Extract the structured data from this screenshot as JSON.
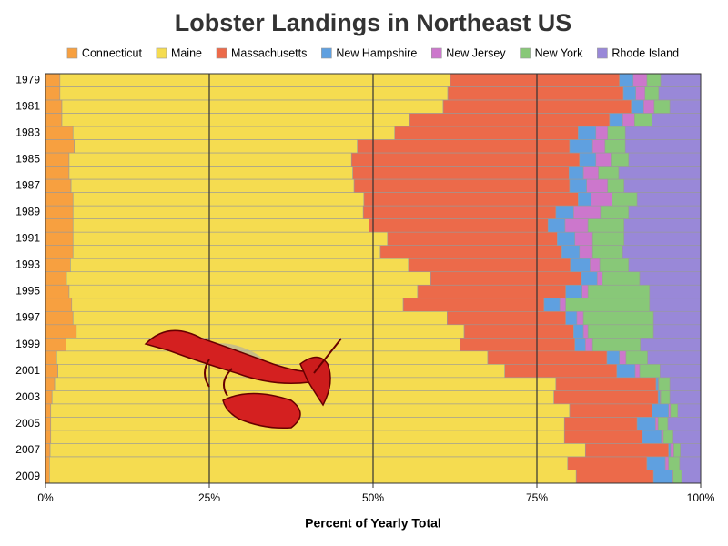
{
  "chart_data": {
    "type": "stacked-bar-horizontal",
    "title": "Lobster Landings in Northeast US",
    "x_label": "Percent of Yearly Total",
    "categories": [
      "1979",
      null,
      "1981",
      null,
      "1983",
      null,
      "1985",
      null,
      "1987",
      null,
      "1989",
      null,
      "1991",
      null,
      "1993",
      null,
      "1995",
      null,
      "1997",
      null,
      "1999",
      null,
      "2001",
      null,
      "2003",
      null,
      "2005",
      null,
      "2007",
      null,
      "2009"
    ],
    "series": [
      {
        "name": "Connecticut",
        "color": "#f7a040",
        "values": [
          2.2,
          2.2,
          2.5,
          2.5,
          4.2,
          4.4,
          3.6,
          3.6,
          3.9,
          4.2,
          4.2,
          4.2,
          4.2,
          4.2,
          3.8,
          3.2,
          3.6,
          4.0,
          4.2,
          4.7,
          3.1,
          1.7,
          1.9,
          1.4,
          1.0,
          0.8,
          0.8,
          0.8,
          0.7,
          0.6,
          0.6
        ]
      },
      {
        "name": "Maine",
        "color": "#f5dc50",
        "values": [
          59.6,
          59.2,
          58.2,
          53.1,
          49.1,
          43.2,
          43.1,
          43.3,
          43.2,
          44.4,
          44.3,
          45.2,
          48.0,
          46.9,
          51.6,
          55.6,
          53.2,
          50.6,
          57.1,
          59.2,
          60.2,
          65.8,
          68.2,
          76.5,
          76.6,
          79.2,
          78.4,
          78.4,
          81.7,
          79.1,
          80.4
        ]
      },
      {
        "name": "Massachusetts",
        "color": "#ec6a4a",
        "values": [
          25.8,
          26.8,
          28.7,
          30.5,
          28.0,
          32.4,
          34.8,
          33.0,
          32.9,
          32.7,
          29.4,
          27.3,
          25.9,
          27.7,
          24.7,
          23.0,
          22.6,
          21.5,
          18.1,
          16.7,
          17.5,
          18.2,
          17.1,
          15.3,
          15.9,
          12.6,
          11.1,
          11.9,
          12.7,
          12.1,
          11.8
        ]
      },
      {
        "name": "New Hampshire",
        "color": "#5fa0e0",
        "values": [
          2.1,
          1.9,
          1.9,
          2.0,
          2.7,
          3.5,
          2.5,
          2.2,
          2.6,
          2.0,
          2.7,
          2.6,
          2.7,
          2.7,
          3.0,
          2.4,
          2.5,
          2.4,
          1.7,
          1.5,
          1.6,
          1.9,
          2.8,
          0.3,
          0.3,
          2.5,
          2.8,
          2.9,
          0.3,
          2.8,
          2.9
        ]
      },
      {
        "name": "New Jersey",
        "color": "#cc77cc",
        "values": [
          2.1,
          1.4,
          1.6,
          1.8,
          1.8,
          1.9,
          2.3,
          2.3,
          3.2,
          3.2,
          4.1,
          3.5,
          2.7,
          2.0,
          1.5,
          0.8,
          0.9,
          0.9,
          1.0,
          0.7,
          1.1,
          1.0,
          0.7,
          0.1,
          0.1,
          0.3,
          0.4,
          0.3,
          0.5,
          0.5,
          0.1
        ]
      },
      {
        "name": "New York",
        "color": "#88c878",
        "values": [
          2.1,
          2.1,
          2.4,
          2.7,
          2.7,
          3.1,
          2.7,
          3.1,
          2.5,
          3.8,
          4.3,
          5.5,
          4.8,
          4.6,
          4.4,
          5.7,
          9.4,
          12.8,
          10.7,
          10.0,
          7.3,
          3.3,
          3.1,
          1.7,
          1.4,
          1.1,
          1.5,
          1.5,
          1.0,
          1.7,
          1.3
        ]
      },
      {
        "name": "Rhode Island",
        "color": "#9988d8",
        "values": [
          6.1,
          6.4,
          4.7,
          7.4,
          11.5,
          11.5,
          11.0,
          12.5,
          11.7,
          9.7,
          11.0,
          11.7,
          11.7,
          11.9,
          11.0,
          9.3,
          7.8,
          7.8,
          7.2,
          7.2,
          9.2,
          8.1,
          6.2,
          4.7,
          4.7,
          3.5,
          5.0,
          4.2,
          3.1,
          3.2,
          2.9
        ]
      }
    ],
    "xlim": [
      0,
      100
    ],
    "xticks": [
      {
        "value": 0,
        "label": "0%"
      },
      {
        "value": 25,
        "label": "25%"
      },
      {
        "value": 50,
        "label": "50%"
      },
      {
        "value": 75,
        "label": "75%"
      },
      {
        "value": 100,
        "label": "100%"
      }
    ],
    "grid": true
  }
}
